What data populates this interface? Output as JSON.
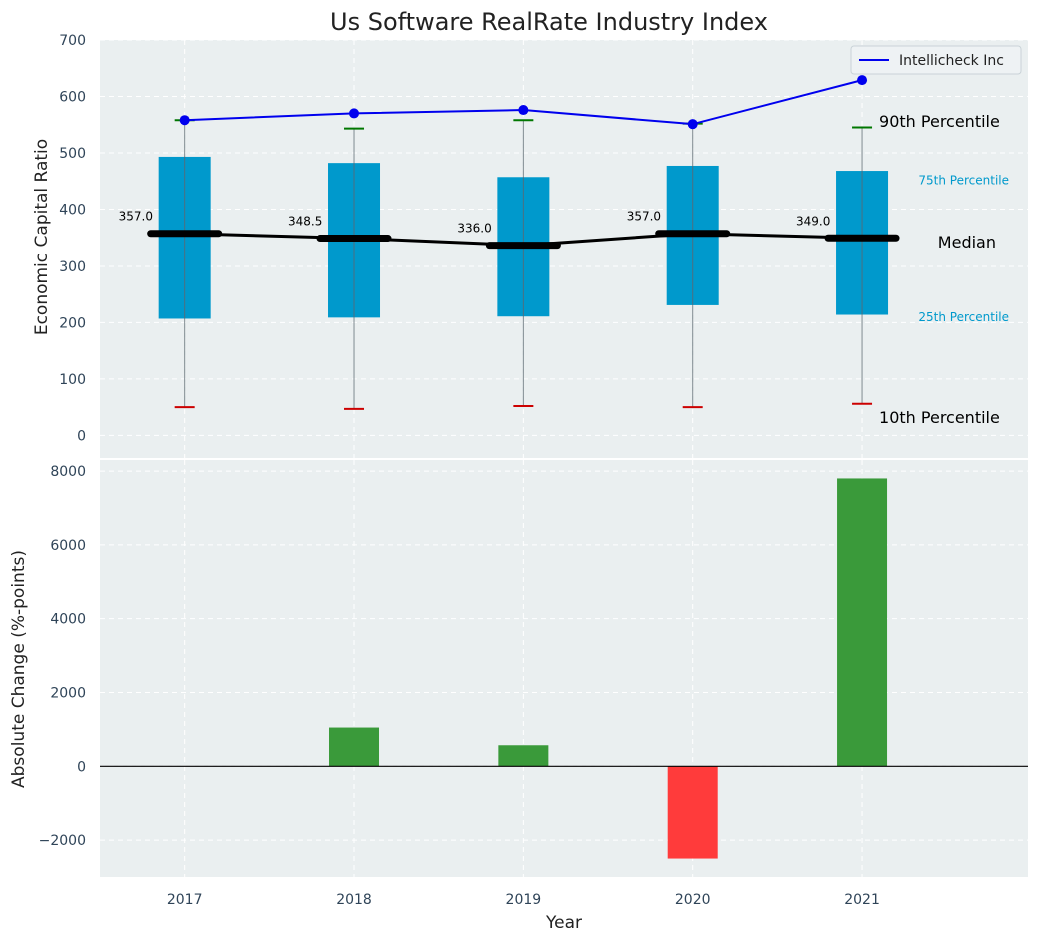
{
  "chart_data": [
    {
      "type": "box",
      "title": "Us Software RealRate Industry Index",
      "ylabel": "Economic Capital Ratio",
      "categories": [
        "2017",
        "2018",
        "2019",
        "2020",
        "2021"
      ],
      "ylim": [
        -40,
        700
      ],
      "yticks": [
        "0",
        "100",
        "200",
        "300",
        "400",
        "500",
        "600",
        "700"
      ],
      "p10": [
        50,
        47,
        52,
        50,
        56
      ],
      "p25": [
        207,
        209,
        211,
        231,
        214
      ],
      "median": [
        357,
        348.5,
        336,
        357,
        349
      ],
      "p75": [
        493,
        482,
        457,
        477,
        468
      ],
      "p90": [
        558,
        543,
        558,
        552,
        545
      ],
      "median_labels": [
        "357.0",
        "348.5",
        "336.0",
        "357.0",
        "349.0"
      ],
      "series": [
        {
          "name": "Intellicheck Inc",
          "values": [
            558,
            570,
            576,
            551,
            629
          ],
          "color": "#0000ee"
        }
      ],
      "annotations": {
        "p90": "90th Percentile",
        "p75": "75th Percentile",
        "median": "Median",
        "p25": "25th Percentile",
        "p10": "10th Percentile"
      },
      "legend": "top-right",
      "grid": true
    },
    {
      "type": "bar",
      "xlabel": "Year",
      "ylabel": "Absolute Change (%-points)",
      "categories": [
        "2017",
        "2018",
        "2019",
        "2020",
        "2021"
      ],
      "values": [
        0,
        1050,
        570,
        -2500,
        7800
      ],
      "ylim": [
        -3000,
        8300
      ],
      "yticks": [
        "−2000",
        "0",
        "2000",
        "4000",
        "6000",
        "8000"
      ],
      "colors": {
        "positive": "#3a9a3a",
        "negative": "#ff3b3b"
      },
      "grid": true
    }
  ],
  "colors": {
    "box": "#0099cc",
    "panel_bg": "#eaeff0",
    "grid": "#ffffff",
    "median_line": "#000000",
    "p90_cap": "#007700",
    "p10_cap": "#cc0000"
  }
}
